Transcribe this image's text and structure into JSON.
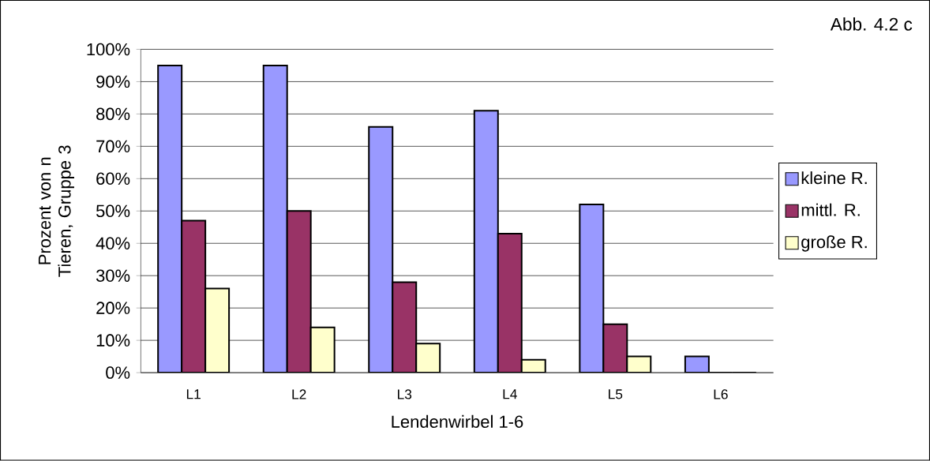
{
  "chart_data": {
    "type": "bar",
    "annotations": [
      "Abb. 4.2 c"
    ],
    "xlabel": "Lendenwirbel 1-6",
    "ylabel": "Prozent von n Tieren, Gruppe 3",
    "categories": [
      "L1",
      "L2",
      "L3",
      "L4",
      "L5",
      "L6"
    ],
    "series": [
      {
        "name": "kleine R.",
        "color": "#9999ff",
        "values": [
          95,
          95,
          76,
          81,
          52,
          5
        ]
      },
      {
        "name": "mittl. R.",
        "color": "#993366",
        "values": [
          47,
          50,
          28,
          43,
          15,
          0
        ]
      },
      {
        "name": "große R.",
        "color": "#ffffcc",
        "values": [
          26,
          14,
          9,
          4,
          5,
          0
        ]
      }
    ],
    "ylim": [
      0,
      100
    ],
    "yticks": [
      {
        "value": 0,
        "label": "0%"
      },
      {
        "value": 10,
        "label": "10%"
      },
      {
        "value": 20,
        "label": "20%"
      },
      {
        "value": 30,
        "label": "30%"
      },
      {
        "value": 40,
        "label": "40%"
      },
      {
        "value": 50,
        "label": "50%"
      },
      {
        "value": 60,
        "label": "60%"
      },
      {
        "value": 70,
        "label": "70%"
      },
      {
        "value": 80,
        "label": "80%"
      },
      {
        "value": 90,
        "label": "90%"
      },
      {
        "value": 100,
        "label": "100%"
      }
    ],
    "grid": "y",
    "legend": "right"
  }
}
